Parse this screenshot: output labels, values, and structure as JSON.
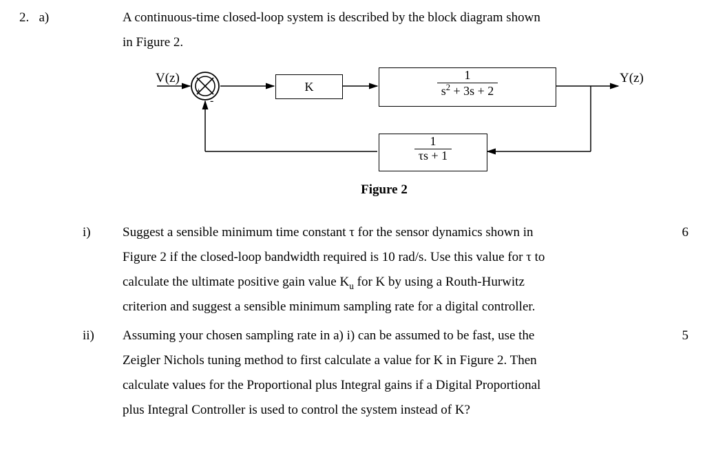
{
  "question": {
    "number": "2.",
    "part": "a)",
    "intro_line1": "A continuous-time closed-loop system  is described by the block diagram  shown",
    "intro_line2": "in Figure 2."
  },
  "figure": {
    "caption": "Figure 2",
    "input_label": "V(z)",
    "output_label": "Y(z)",
    "k_label": "K",
    "plant_num": "1",
    "plant_den_html": "s<sup>2</sup> + 3s + 2",
    "sensor_num": "1",
    "sensor_den_html": "τs + 1",
    "sum_plus": "+",
    "sum_minus": "-",
    "colors": {
      "stroke": "#000000",
      "background": "#ffffff"
    },
    "line_width": 1.5
  },
  "parts": {
    "i": {
      "label": "i)",
      "marks": "6",
      "text_line1_html": "Suggest a sensible minimum time constant τ for the sensor dynamics shown in",
      "text_line2_html": "Figure 2 if the closed-loop bandwidth required is 10 rad/s.   Use this value for τ to",
      "text_line3_html": "calculate the ultimate positive gain value K<sub>u</sub> for K by using a Routh-Hurwitz",
      "text_line4_html": "criterion and suggest a sensible minimum sampling rate for a digital controller."
    },
    "ii": {
      "label": "ii)",
      "marks": "5",
      "text_line1_html": "Assuming your chosen sampling rate in a) i) can be assumed to be fast, use the",
      "text_line2_html": "Zeigler Nichols tuning method to first calculate a value for K in Figure 2.  Then",
      "text_line3_html": "calculate values for the Proportional plus Integral gains if a Digital Proportional",
      "text_line4_html": "plus Integral Controller is used to control the system instead of K?"
    }
  }
}
